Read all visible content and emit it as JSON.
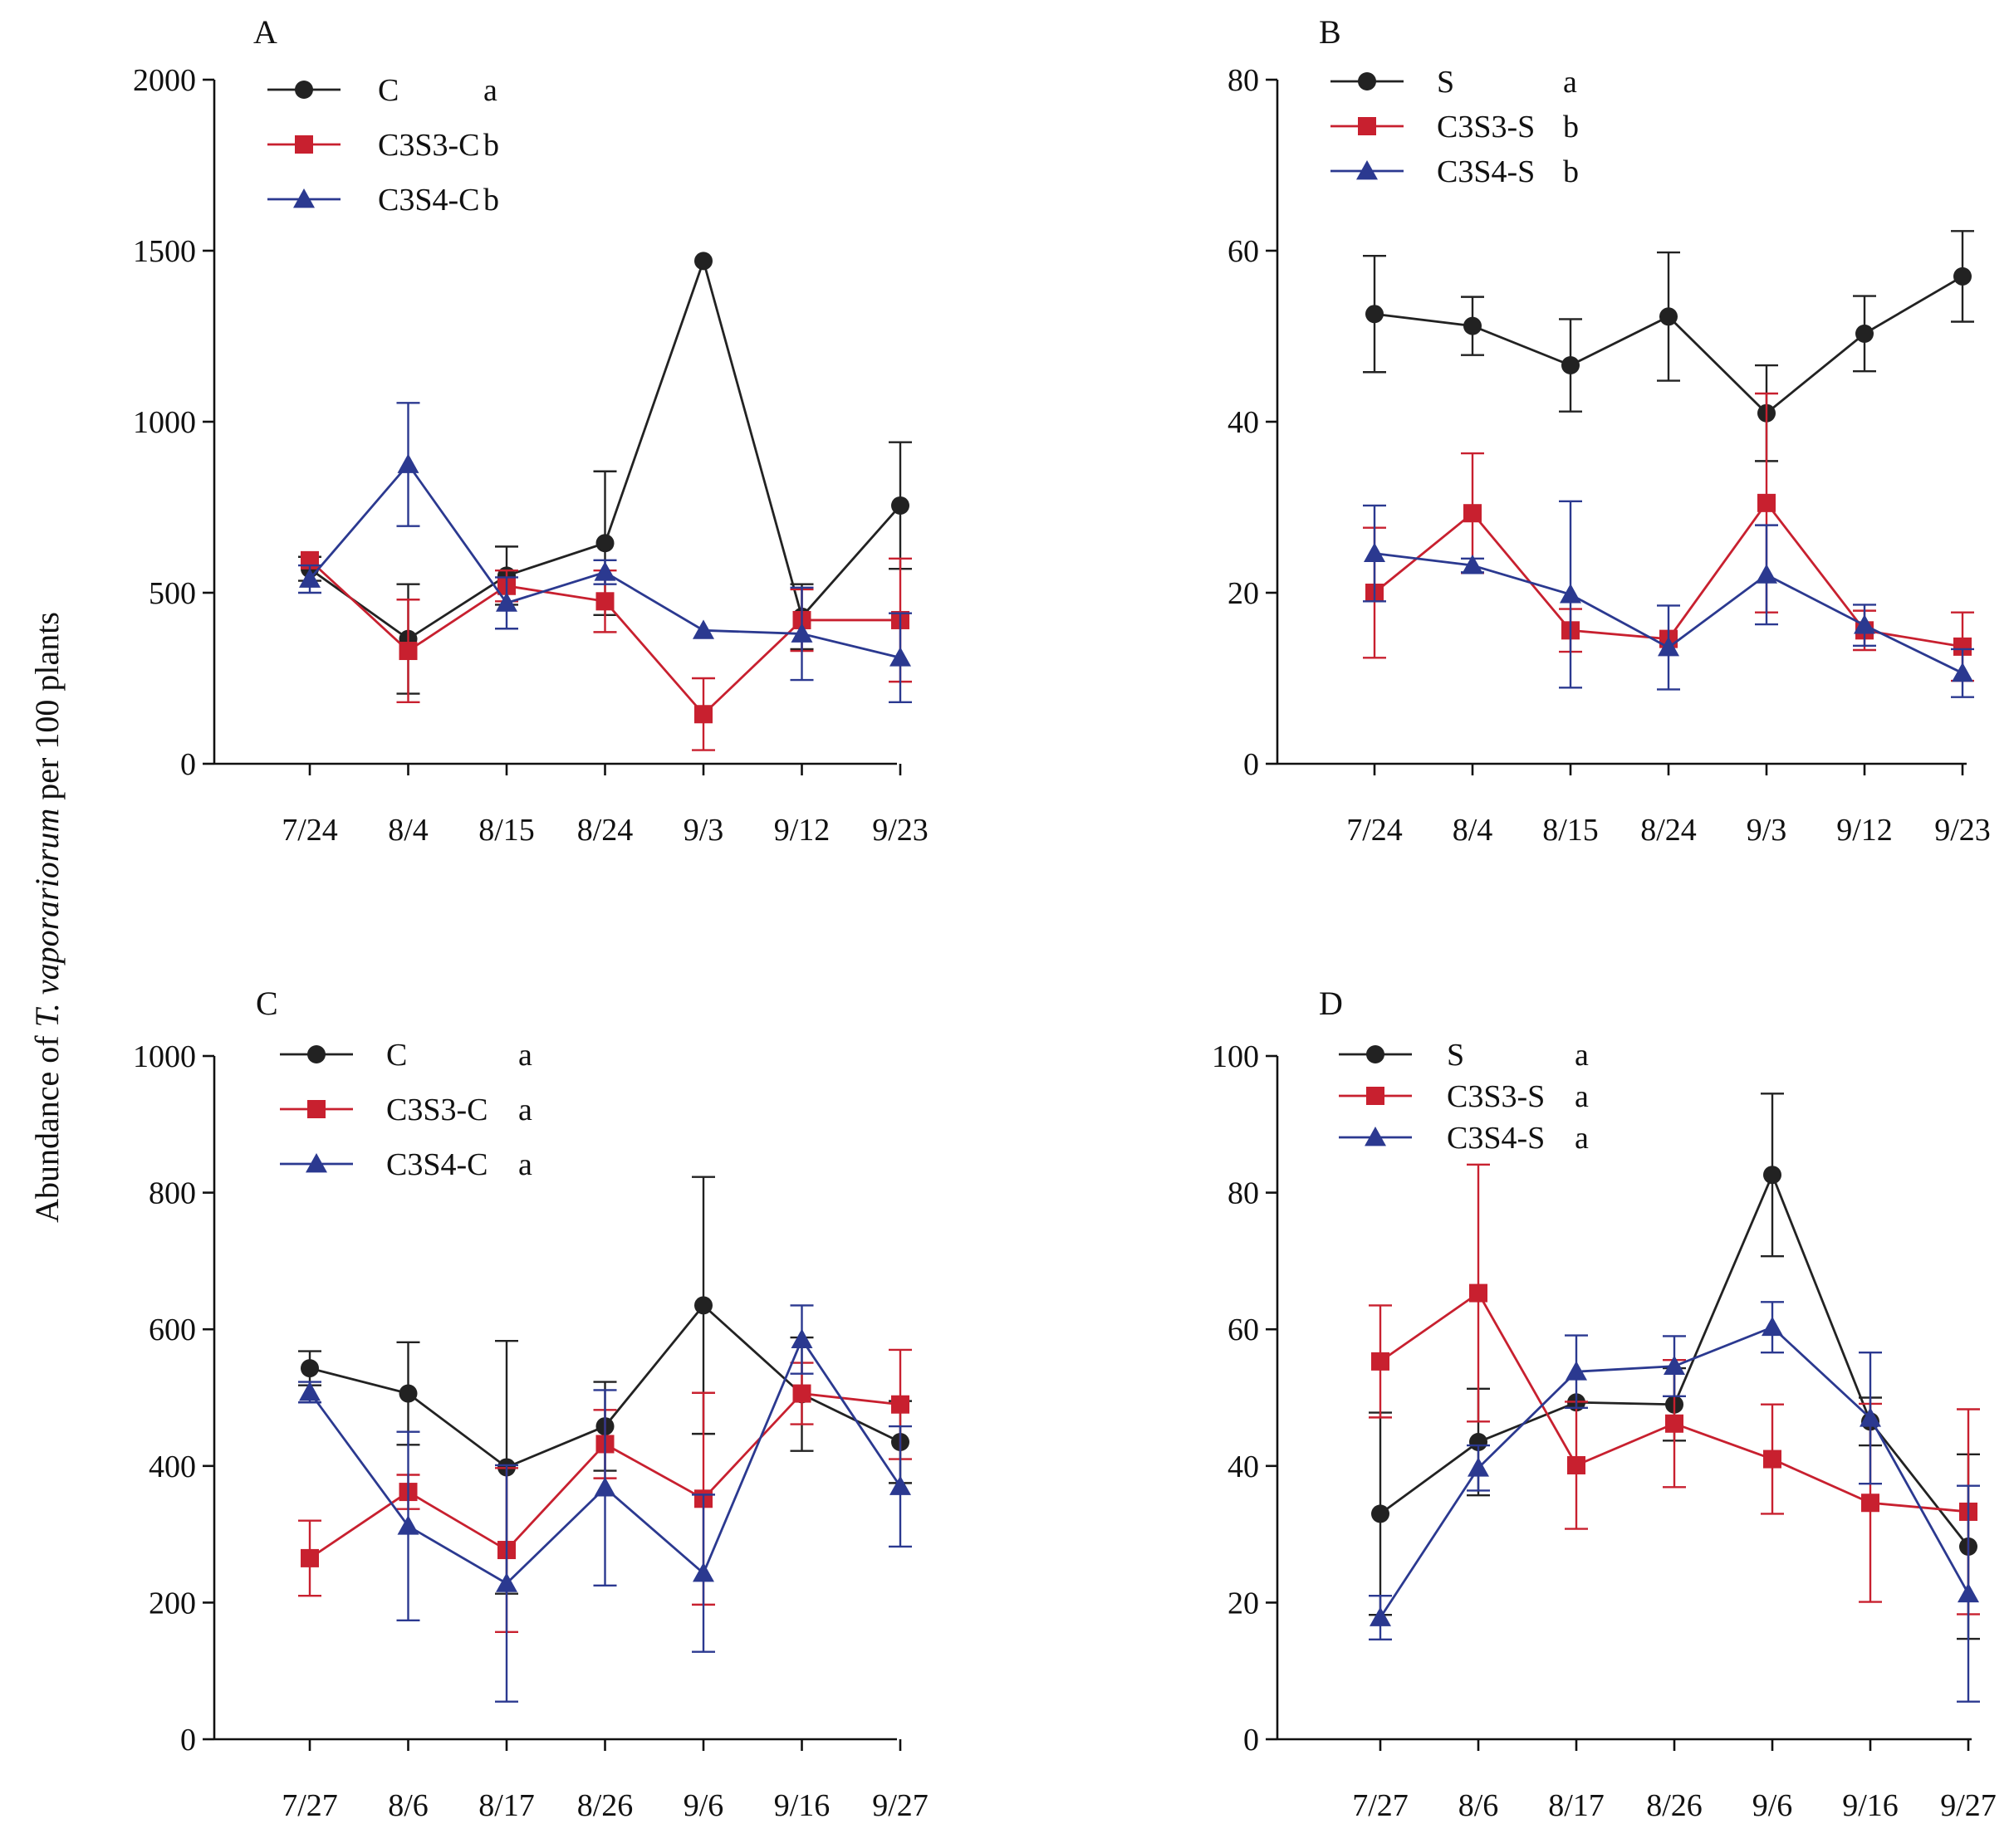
{
  "figure": {
    "y_axis_title_prefix": "Abundance of ",
    "y_axis_title_species": "T. vaporariorum",
    "y_axis_title_suffix": " per 100 plants"
  },
  "colors": {
    "black": "#222222",
    "red": "#c8202f",
    "blue": "#2b3990"
  },
  "chart_data": [
    {
      "panel": "A",
      "type": "line",
      "title": "",
      "xlabel": "",
      "ylabel": "Abundance of T. vaporariorum per 100 plants",
      "categories": [
        "7/24",
        "8/4",
        "8/15",
        "8/24",
        "9/3",
        "9/12",
        "9/23"
      ],
      "ylim": [
        0,
        2000
      ],
      "yticks": [
        0,
        500,
        1000,
        1500,
        2000
      ],
      "legend_position": "top-left",
      "series": [
        {
          "name": "C",
          "letter": "a",
          "color": "black",
          "marker": "circle",
          "values": [
            570,
            365,
            550,
            645,
            1470,
            430,
            755
          ],
          "errors": [
            35,
            160,
            85,
            210,
            0,
            95,
            185
          ]
        },
        {
          "name": "C3S3-C",
          "letter": "b",
          "color": "red",
          "marker": "square",
          "values": [
            595,
            330,
            520,
            475,
            145,
            420,
            420
          ],
          "errors": [
            0,
            150,
            45,
            90,
            105,
            90,
            180
          ]
        },
        {
          "name": "C3S4-C",
          "letter": "b",
          "color": "blue",
          "marker": "triangle",
          "values": [
            540,
            875,
            470,
            560,
            390,
            380,
            310
          ],
          "errors": [
            40,
            180,
            75,
            35,
            0,
            135,
            130
          ]
        }
      ]
    },
    {
      "panel": "B",
      "type": "line",
      "title": "",
      "xlabel": "",
      "ylabel": "",
      "categories": [
        "7/24",
        "8/4",
        "8/15",
        "8/24",
        "9/3",
        "9/12",
        "9/23"
      ],
      "ylim": [
        0,
        80
      ],
      "yticks": [
        0,
        20,
        40,
        60,
        80
      ],
      "legend_position": "top-left",
      "series": [
        {
          "name": "S",
          "letter": "a",
          "color": "black",
          "marker": "circle",
          "values": [
            52.6,
            51.2,
            46.6,
            52.3,
            41.0,
            50.3,
            57.0
          ],
          "errors": [
            6.8,
            3.4,
            5.4,
            7.5,
            5.6,
            4.4,
            5.3
          ]
        },
        {
          "name": "C3S3-S",
          "letter": "b",
          "color": "red",
          "marker": "square",
          "values": [
            20.0,
            29.3,
            15.6,
            14.6,
            30.5,
            15.6,
            13.7
          ],
          "errors": [
            7.6,
            7.0,
            2.5,
            0,
            12.8,
            2.3,
            4.0
          ]
        },
        {
          "name": "C3S4-S",
          "letter": "b",
          "color": "blue",
          "marker": "triangle",
          "values": [
            24.6,
            23.2,
            19.8,
            13.6,
            22.1,
            16.2,
            10.6
          ],
          "errors": [
            5.6,
            0.8,
            10.9,
            4.9,
            5.8,
            2.4,
            2.8
          ]
        }
      ]
    },
    {
      "panel": "C",
      "type": "line",
      "title": "",
      "xlabel": "",
      "ylabel": "",
      "categories": [
        "7/27",
        "8/6",
        "8/17",
        "8/26",
        "9/6",
        "9/16",
        "9/27"
      ],
      "ylim": [
        0,
        1000
      ],
      "yticks": [
        0,
        200,
        400,
        600,
        800,
        1000
      ],
      "legend_position": "top-left",
      "series": [
        {
          "name": "C",
          "letter": "a",
          "color": "black",
          "marker": "circle",
          "values": [
            543,
            506,
            398,
            458,
            635,
            505,
            435
          ],
          "errors": [
            25,
            75,
            185,
            65,
            188,
            83,
            60
          ]
        },
        {
          "name": "C3S3-C",
          "letter": "a",
          "color": "red",
          "marker": "square",
          "values": [
            265,
            362,
            277,
            432,
            352,
            506,
            490
          ],
          "errors": [
            55,
            25,
            120,
            50,
            155,
            45,
            80
          ]
        },
        {
          "name": "C3S4-C",
          "letter": "a",
          "color": "blue",
          "marker": "triangle",
          "values": [
            508,
            312,
            228,
            368,
            243,
            585,
            370
          ],
          "errors": [
            15,
            138,
            173,
            143,
            115,
            50,
            88
          ]
        }
      ]
    },
    {
      "panel": "D",
      "type": "line",
      "title": "",
      "xlabel": "",
      "ylabel": "",
      "categories": [
        "7/27",
        "8/6",
        "8/17",
        "8/26",
        "9/6",
        "9/16",
        "9/27"
      ],
      "ylim": [
        0,
        100
      ],
      "yticks": [
        0,
        20,
        40,
        60,
        80,
        100
      ],
      "legend_position": "top-left",
      "series": [
        {
          "name": "S",
          "letter": "a",
          "color": "black",
          "marker": "circle",
          "values": [
            33.0,
            43.5,
            49.3,
            49.0,
            82.6,
            46.5,
            28.2
          ],
          "errors": [
            14.8,
            7.8,
            0,
            5.3,
            11.9,
            3.5,
            13.5
          ]
        },
        {
          "name": "C3S3-S",
          "letter": "a",
          "color": "red",
          "marker": "square",
          "values": [
            55.3,
            65.3,
            40.1,
            46.2,
            41.0,
            34.6,
            33.3
          ],
          "errors": [
            8.2,
            18.8,
            9.3,
            9.3,
            8.0,
            14.5,
            15.0
          ]
        },
        {
          "name": "C3S4-S",
          "letter": "a",
          "color": "blue",
          "marker": "triangle",
          "values": [
            17.8,
            39.7,
            53.8,
            54.6,
            60.3,
            47.0,
            21.3
          ],
          "errors": [
            3.2,
            3.3,
            5.3,
            4.4,
            3.7,
            9.6,
            15.8
          ]
        }
      ]
    }
  ]
}
